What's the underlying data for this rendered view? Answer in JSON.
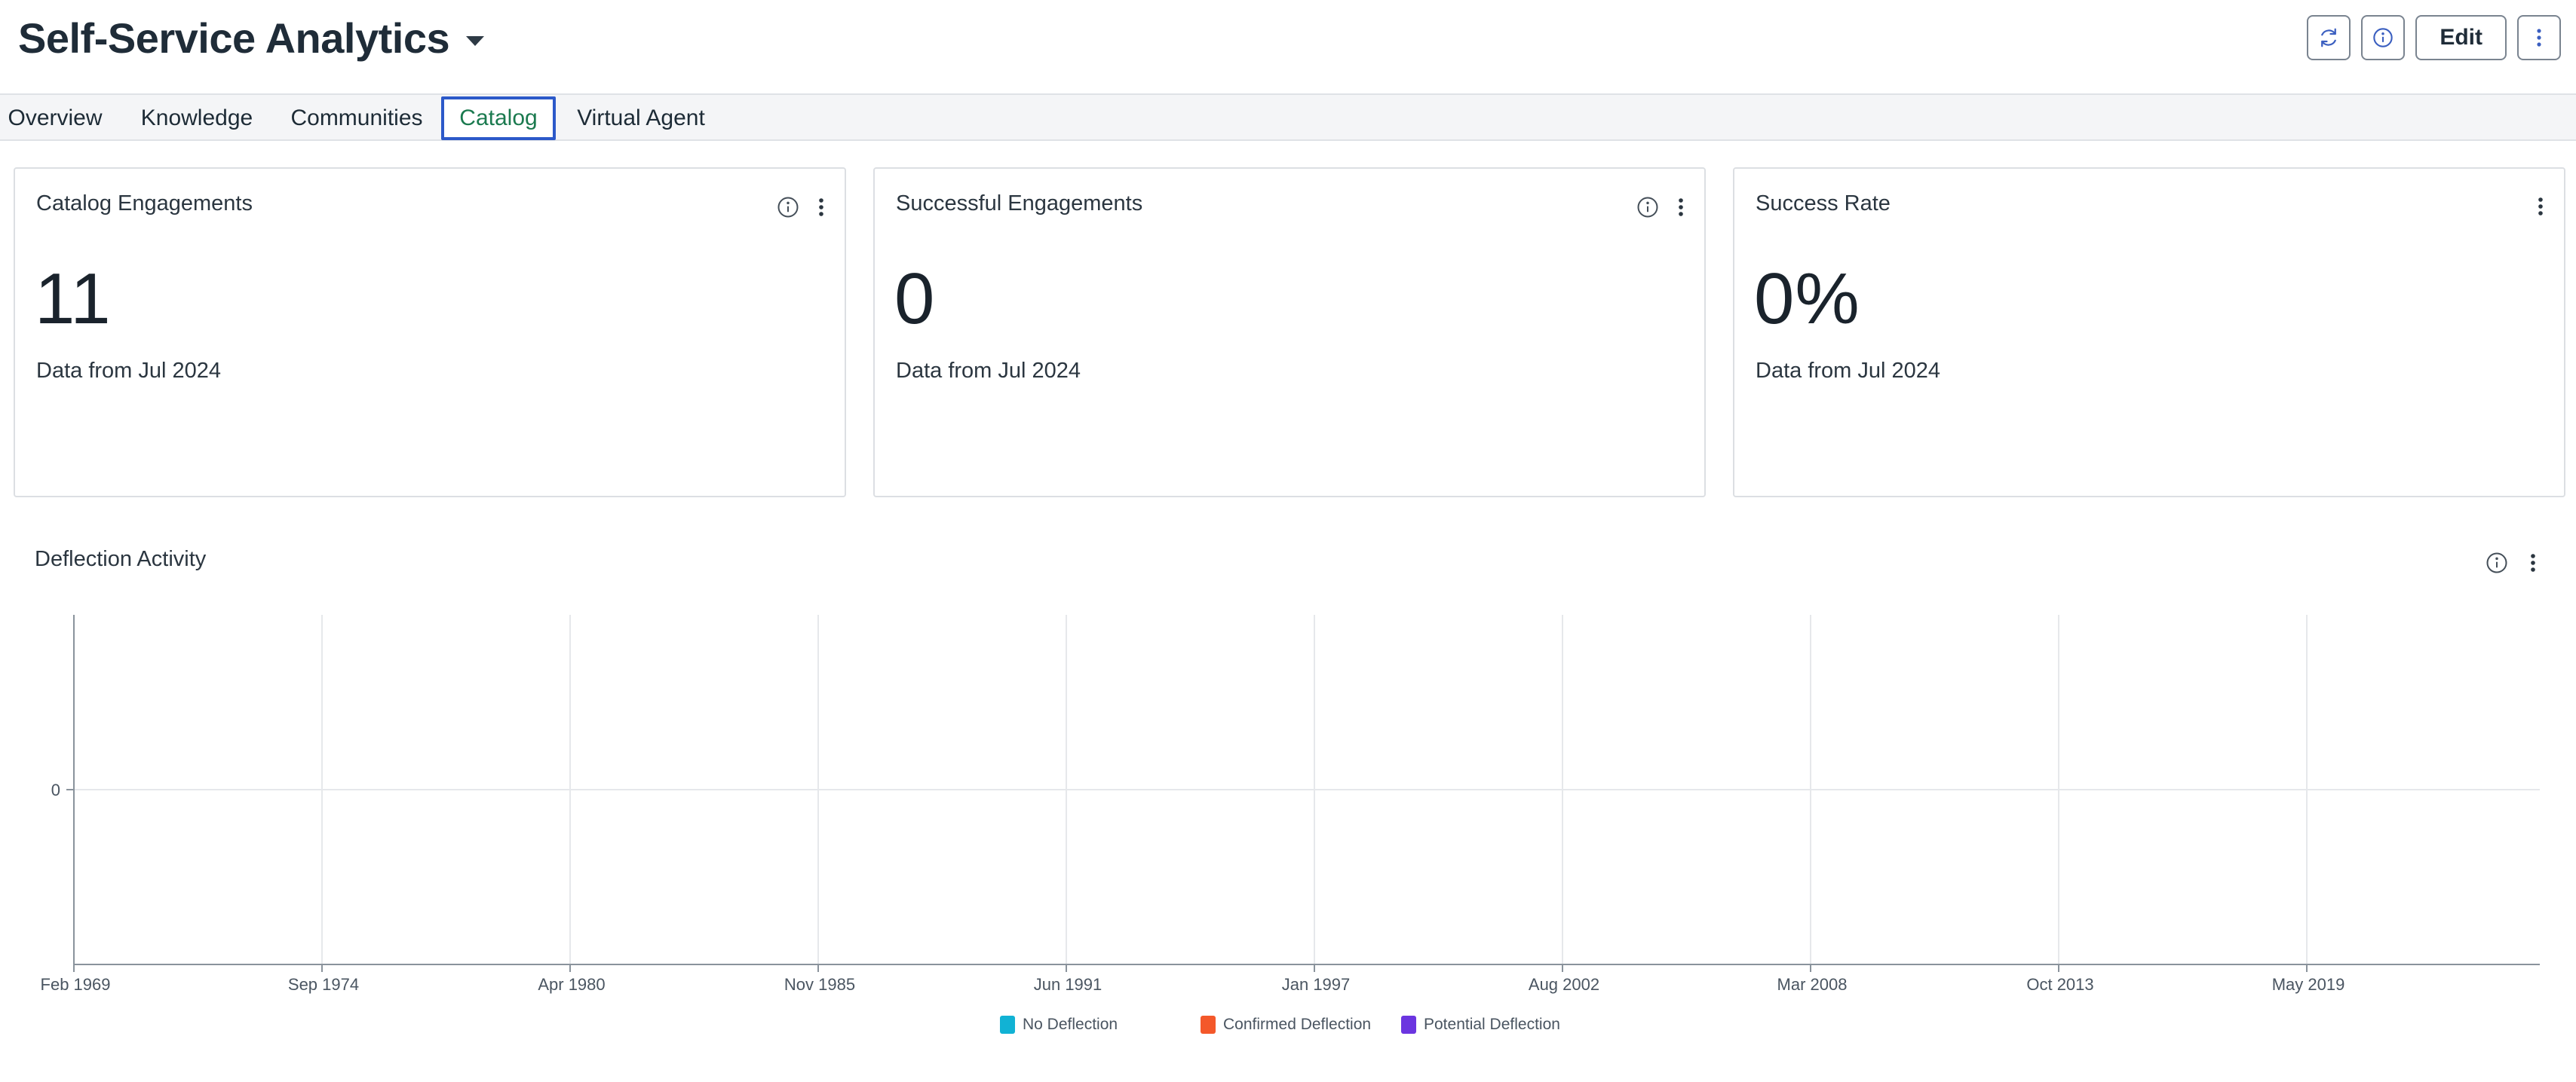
{
  "header": {
    "title": "Self-Service Analytics",
    "edit_label": "Edit"
  },
  "tabs": [
    {
      "label": "Overview"
    },
    {
      "label": "Knowledge"
    },
    {
      "label": "Communities"
    },
    {
      "label": "Catalog",
      "active": true
    },
    {
      "label": "Virtual Agent"
    }
  ],
  "cards": [
    {
      "title": "Catalog Engagements",
      "value": "11",
      "subtitle": "Data from Jul 2024"
    },
    {
      "title": "Successful Engagements",
      "value": "0",
      "subtitle": "Data from Jul 2024"
    },
    {
      "title": "Success Rate",
      "value": "0%",
      "subtitle": "Data from Jul 2024"
    }
  ],
  "deflection": {
    "title": "Deflection Activity"
  },
  "chart_data": {
    "type": "line",
    "title": "Deflection Activity",
    "x_tick_labels": [
      "Feb 1969",
      "Sep 1974",
      "Apr 1980",
      "Nov 1985",
      "Jun 1991",
      "Jan 1997",
      "Aug 2002",
      "Mar 2008",
      "Oct 2013",
      "May 2019"
    ],
    "y_tick_labels": [
      "0"
    ],
    "series": [
      {
        "name": "No Deflection",
        "values": [],
        "color": "#11b2d4"
      },
      {
        "name": "Confirmed Deflection",
        "values": [],
        "color": "#f4582a"
      },
      {
        "name": "Potential Deflection",
        "values": [],
        "color": "#6b35e0"
      }
    ],
    "grid": true,
    "legend_position": "bottom-center"
  }
}
